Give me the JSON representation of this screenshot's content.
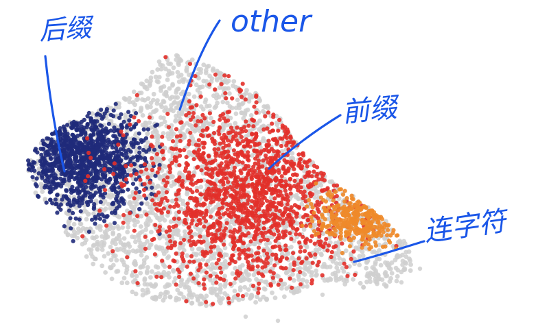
{
  "chart_data": {
    "type": "scatter",
    "title": "",
    "xlabel": "",
    "ylabel": "",
    "axes_visible": false,
    "grid": false,
    "legend": "none",
    "series": [
      {
        "name": "other",
        "color": "#cfcfcf",
        "count": 2600,
        "region": {
          "x": [
            -5,
            5
          ],
          "y": [
            -3,
            3
          ]
        }
      },
      {
        "name": "后缀",
        "color": "#1f2a7a",
        "count": 1100,
        "center": [
          -3.6,
          1.0
        ]
      },
      {
        "name": "前缀",
        "color": "#e2302a",
        "count": 1500,
        "center": [
          0.6,
          -0.3
        ]
      },
      {
        "name": "连字符",
        "color": "#ee8a2a",
        "count": 320,
        "center": [
          3.4,
          -1.2
        ]
      }
    ],
    "annotations": [
      {
        "id": "suffix",
        "text": "后缀",
        "target": "后缀"
      },
      {
        "id": "other",
        "text": "other",
        "target": "other"
      },
      {
        "id": "prefix",
        "text": "前缀",
        "target": "前缀"
      },
      {
        "id": "hyphen",
        "text": "连字符",
        "target": "连字符"
      }
    ]
  },
  "style": {
    "annotation_color": "#1a56e8",
    "background": "#ffffff"
  }
}
